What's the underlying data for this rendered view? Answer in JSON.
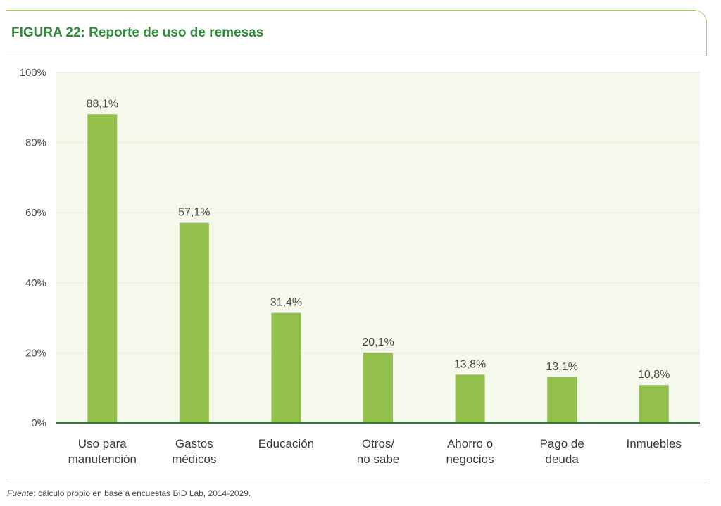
{
  "figure": {
    "title": "FIGURA 22: Reporte de uso de remesas",
    "source_label": "Fuente",
    "source_text": ": cálculo propio en base a encuestas BID Lab, 2014-2029."
  },
  "colors": {
    "bar": "#93c04b",
    "plot_bg": "#f5f9ec",
    "title": "#2f8a3a",
    "axis": "#2e7d3a",
    "grid": "#e6eedb"
  },
  "chart_data": {
    "type": "bar",
    "title": "FIGURA 22: Reporte de uso de remesas",
    "xlabel": "",
    "ylabel": "",
    "ylim": [
      0,
      100
    ],
    "yticks": [
      0,
      20,
      40,
      60,
      80,
      100
    ],
    "ytick_labels": [
      "0%",
      "20%",
      "40%",
      "60%",
      "80%",
      "100%"
    ],
    "grid": true,
    "categories": [
      [
        "Uso para",
        "manutención"
      ],
      [
        "Gastos",
        "médicos"
      ],
      [
        "Educación"
      ],
      [
        "Otros/",
        "no sabe"
      ],
      [
        "Ahorro o",
        "negocios"
      ],
      [
        "Pago de",
        "deuda"
      ],
      [
        "Inmuebles"
      ]
    ],
    "values": [
      88.1,
      57.1,
      31.4,
      20.1,
      13.8,
      13.1,
      10.8
    ],
    "value_labels": [
      "88,1%",
      "57,1%",
      "31,4%",
      "20,1%",
      "13,8%",
      "13,1%",
      "10,8%"
    ]
  }
}
